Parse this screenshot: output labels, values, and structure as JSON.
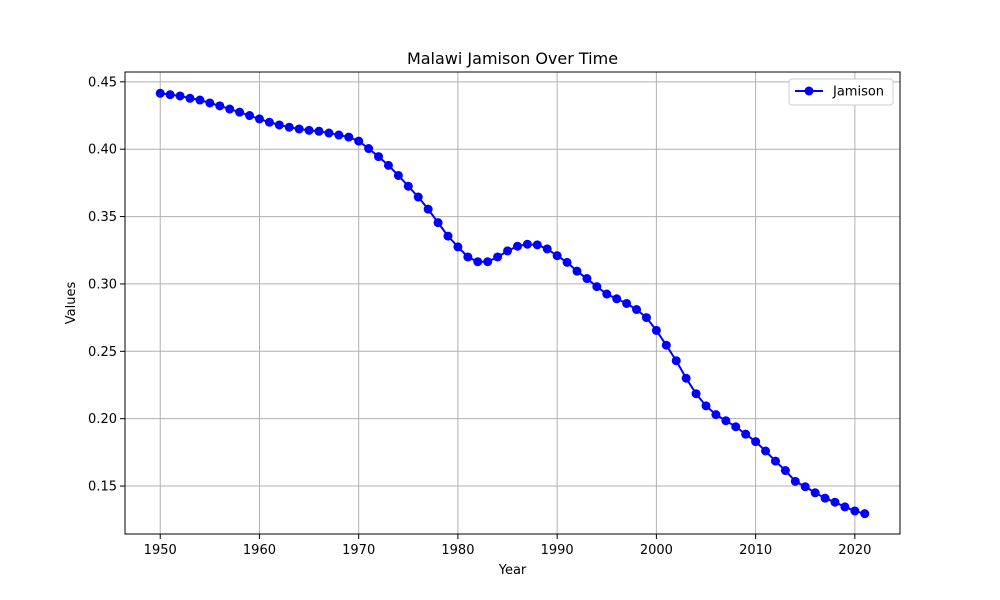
{
  "chart_data": {
    "type": "line",
    "title": "Malawi Jamison Over Time",
    "xlabel": "Year",
    "ylabel": "Values",
    "xlim": [
      1946.45,
      2024.55
    ],
    "ylim": [
      0.1144,
      0.4573
    ],
    "xticks": [
      1950,
      1960,
      1970,
      1980,
      1990,
      2000,
      2010,
      2020
    ],
    "yticks": [
      0.15,
      0.2,
      0.25,
      0.3,
      0.35,
      0.4,
      0.45
    ],
    "grid": true,
    "legend": {
      "placement": "top-right",
      "entries": [
        "Jamison"
      ]
    },
    "series": [
      {
        "name": "Jamison",
        "color": "#0000ff",
        "marker": "circle",
        "x": [
          1950,
          1951,
          1952,
          1953,
          1954,
          1955,
          1956,
          1957,
          1958,
          1959,
          1960,
          1961,
          1962,
          1963,
          1964,
          1965,
          1966,
          1967,
          1968,
          1969,
          1970,
          1971,
          1972,
          1973,
          1974,
          1975,
          1976,
          1977,
          1978,
          1979,
          1980,
          1981,
          1982,
          1983,
          1984,
          1985,
          1986,
          1987,
          1988,
          1989,
          1990,
          1991,
          1992,
          1993,
          1994,
          1995,
          1996,
          1997,
          1998,
          1999,
          2000,
          2001,
          2002,
          2003,
          2004,
          2005,
          2006,
          2007,
          2008,
          2009,
          2010,
          2011,
          2012,
          2013,
          2014,
          2015,
          2016,
          2017,
          2018,
          2019,
          2020,
          2021
        ],
        "values": [
          0.4415,
          0.4405,
          0.4395,
          0.4378,
          0.4365,
          0.4343,
          0.4322,
          0.4298,
          0.4275,
          0.425,
          0.4225,
          0.42,
          0.418,
          0.4163,
          0.415,
          0.414,
          0.4133,
          0.412,
          0.4105,
          0.409,
          0.406,
          0.4005,
          0.3945,
          0.388,
          0.3805,
          0.3725,
          0.3645,
          0.3555,
          0.3455,
          0.3355,
          0.3275,
          0.32,
          0.3165,
          0.3165,
          0.32,
          0.3245,
          0.328,
          0.3295,
          0.329,
          0.326,
          0.321,
          0.316,
          0.3095,
          0.304,
          0.298,
          0.2925,
          0.289,
          0.2855,
          0.281,
          0.275,
          0.2655,
          0.2545,
          0.243,
          0.23,
          0.2185,
          0.2095,
          0.203,
          0.1985,
          0.194,
          0.1885,
          0.183,
          0.176,
          0.1685,
          0.1615,
          0.1535,
          0.1495,
          0.145,
          0.141,
          0.138,
          0.1345,
          0.1315,
          0.1295
        ]
      }
    ]
  }
}
